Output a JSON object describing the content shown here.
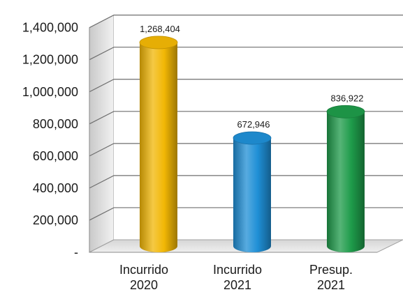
{
  "chart_data": {
    "type": "bar",
    "categories": [
      [
        "Incurrido",
        "2020"
      ],
      [
        "Incurrido",
        "2021"
      ],
      [
        "Presup.",
        "2021"
      ]
    ],
    "values": [
      1268404,
      672946,
      836922
    ],
    "data_labels": [
      "1,268,404",
      "672,946",
      "836,922"
    ],
    "ytick_values": [
      0,
      200000,
      400000,
      600000,
      800000,
      1000000,
      1200000,
      1400000
    ],
    "ytick_labels": [
      "-",
      "200,000",
      "400,000",
      "600,000",
      "800,000",
      "1,000,000",
      "1,200,000",
      "1,400,000"
    ],
    "ylim": [
      0,
      1400000
    ],
    "grid": true,
    "legend": "none",
    "style": "3d-cylinder",
    "colors": [
      "#f2b705",
      "#1f8fd6",
      "#1e9b4a"
    ]
  }
}
